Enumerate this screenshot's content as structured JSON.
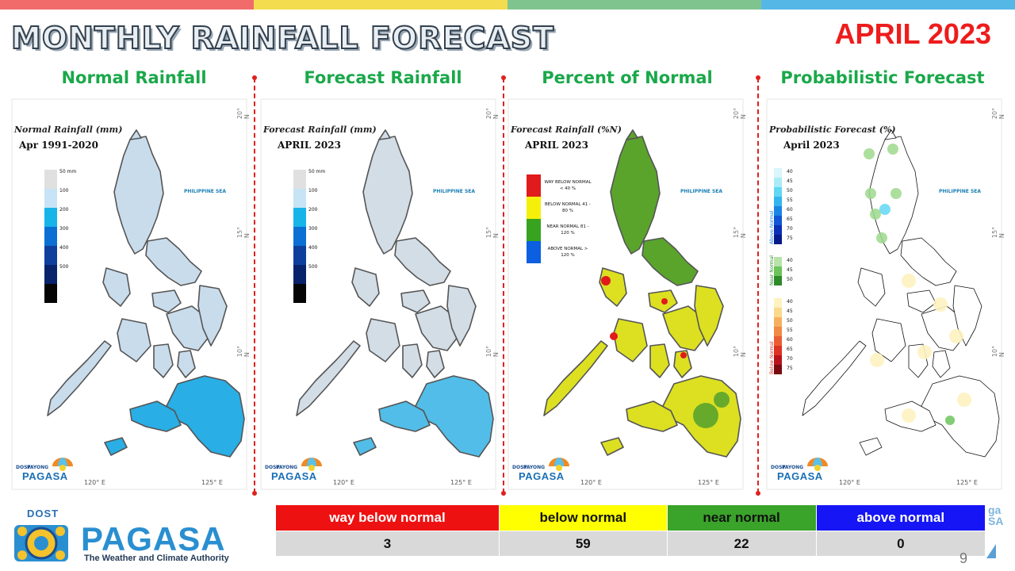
{
  "header": {
    "title": "MONTHLY RAINFALL FORECAST",
    "month": "APRIL 2023",
    "top_bar_colors": [
      "#f26b6b",
      "#f3dc4e",
      "#7fc48f",
      "#55b7e6"
    ]
  },
  "panels": [
    {
      "title": "Normal Rainfall",
      "map_title": "Normal Rainfall (mm)",
      "map_subtitle": "Apr 1991-2020",
      "legend_type": "scale",
      "legend": [
        {
          "label": "50 mm",
          "color": "#e0e0e0"
        },
        {
          "label": "100",
          "color": "#c6e4f5"
        },
        {
          "label": "200",
          "color": "#17b4ea"
        },
        {
          "label": "300",
          "color": "#0b6fd4"
        },
        {
          "label": "400",
          "color": "#0f3f9c"
        },
        {
          "label": "500",
          "color": "#08236b"
        },
        {
          "label": "",
          "color": "#050505"
        }
      ],
      "fill_north": "#c9dcec",
      "fill_south": "#29aee6",
      "sea_label": "PHILIPPINE SEA",
      "lon_left": "120° E",
      "lon_right": "125° E",
      "lat_labels": [
        "20° N",
        "15° N",
        "10° N"
      ]
    },
    {
      "title": "Forecast Rainfall",
      "map_title": "Forecast Rainfall (mm)",
      "map_subtitle": "APRIL 2023",
      "legend_type": "scale",
      "legend": [
        {
          "label": "50 mm",
          "color": "#e0e0e0"
        },
        {
          "label": "100",
          "color": "#c6e4f5"
        },
        {
          "label": "200",
          "color": "#17b4ea"
        },
        {
          "label": "300",
          "color": "#0b6fd4"
        },
        {
          "label": "400",
          "color": "#0f3f9c"
        },
        {
          "label": "500",
          "color": "#08236b"
        },
        {
          "label": "",
          "color": "#050505"
        }
      ],
      "fill_north": "#d2dde6",
      "fill_south": "#52bde8",
      "sea_label": "PHILIPPINE SEA",
      "lon_left": "120° E",
      "lon_right": "125° E",
      "lat_labels": [
        "20° N",
        "15° N",
        "10° N"
      ]
    },
    {
      "title": "Percent of Normal",
      "map_title": "Forecast Rainfall (%N)",
      "map_subtitle": "APRIL 2023",
      "legend_type": "category",
      "legend": [
        {
          "label": "WAY BELOW NORMAL < 40 %",
          "color": "#e11b1b"
        },
        {
          "label": "BELOW NORMAL 41 - 80 %",
          "color": "#f5f00a"
        },
        {
          "label": "NEAR NORMAL 81 - 120 %",
          "color": "#38a31f"
        },
        {
          "label": "ABOVE NORMAL > 120 %",
          "color": "#0b5fe0"
        }
      ],
      "fill_north": "#5aa42c",
      "fill_south": "#dce021",
      "sea_label": "PHILIPPINE SEA",
      "lon_left": "120° E",
      "lon_right": "125° E",
      "lat_labels": [
        "20° N",
        "15° N",
        "10° N"
      ]
    },
    {
      "title": "Probabilistic Forecast",
      "map_title": "Probabilistic Forecast (%)",
      "map_subtitle": "April 2023",
      "legend_type": "probability",
      "legend_groups": [
        {
          "name": "Above Normal",
          "values": [
            "40",
            "45",
            "50",
            "55",
            "60",
            "65",
            "70",
            "75"
          ],
          "colors": [
            "#d8f6fb",
            "#a9ecf7",
            "#62d7f4",
            "#33b6f0",
            "#1a85e6",
            "#1056d6",
            "#0b2fb8",
            "#061a8c"
          ]
        },
        {
          "name": "Near Normal",
          "values": [
            "40",
            "45",
            "50"
          ],
          "colors": [
            "#b8e3a8",
            "#6cc45a",
            "#2f8a2a"
          ]
        },
        {
          "name": "Below Normal",
          "values": [
            "40",
            "45",
            "50",
            "55",
            "60",
            "65",
            "70",
            "75"
          ],
          "colors": [
            "#fdf2c0",
            "#fbd98a",
            "#f7b060",
            "#f08a44",
            "#ea5d32",
            "#dc3324",
            "#b8131a",
            "#7a0a10"
          ]
        }
      ],
      "sea_label": "PHILIPPINE SEA",
      "lon_left": "120° E",
      "lon_right": "125° E",
      "lat_labels": [
        "20° N",
        "15° N",
        "10° N"
      ]
    }
  ],
  "mini_logo": {
    "dost": "DOST",
    "payong": "PAYONG",
    "pagasa": "PAGASA"
  },
  "brand": {
    "dost": "DOST",
    "name": "PAGASA",
    "tagline": "The Weather and Climate Authority"
  },
  "summary": {
    "categories": [
      {
        "label": "way below normal",
        "bg": "#ee1111",
        "fg": "#ffffff"
      },
      {
        "label": "below normal",
        "bg": "#ffff00",
        "fg": "#111111"
      },
      {
        "label": "near normal",
        "bg": "#3aa32a",
        "fg": "#111111"
      },
      {
        "label": "above normal",
        "bg": "#1515f5",
        "fg": "#ffffff"
      }
    ],
    "counts": [
      "3",
      "59",
      "22",
      "0"
    ]
  },
  "corner": {
    "text_top": "ga",
    "text_bottom": "SA",
    "page": "9"
  }
}
